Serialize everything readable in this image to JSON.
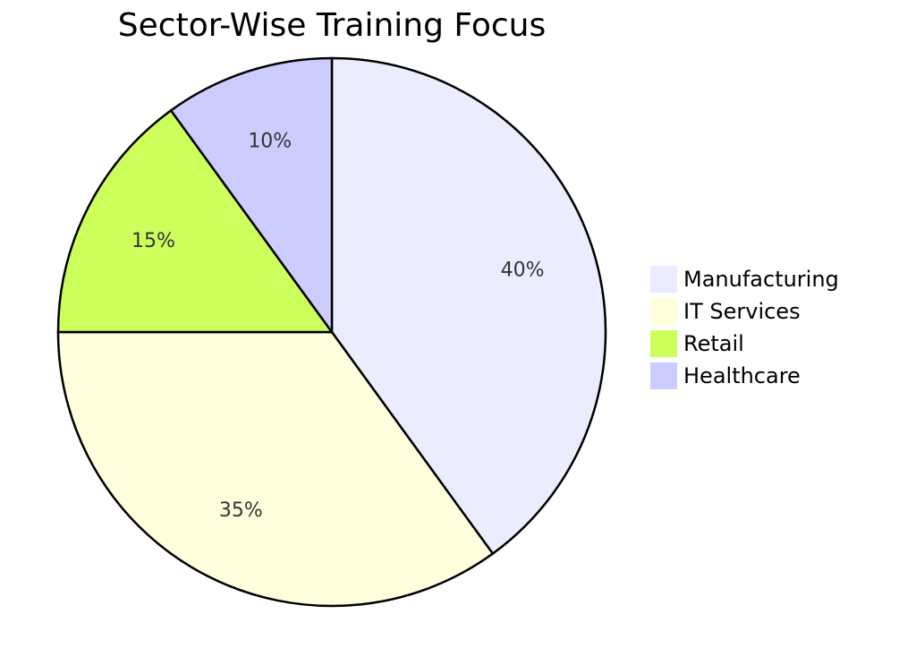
{
  "chart_data": {
    "type": "pie",
    "title": "Sector-Wise Training Focus",
    "slices": [
      {
        "label": "Manufacturing",
        "value": 40,
        "display": "40%",
        "color": "#ECECFF"
      },
      {
        "label": "IT Services",
        "value": 35,
        "display": "35%",
        "color": "#FFFFDE"
      },
      {
        "label": "Retail",
        "value": 15,
        "display": "15%",
        "color": "#CDFF5C"
      },
      {
        "label": "Healthcare",
        "value": 10,
        "display": "10%",
        "color": "#CCCCFF"
      }
    ],
    "legend_position": "right",
    "start_angle": "top",
    "direction": "clockwise"
  }
}
